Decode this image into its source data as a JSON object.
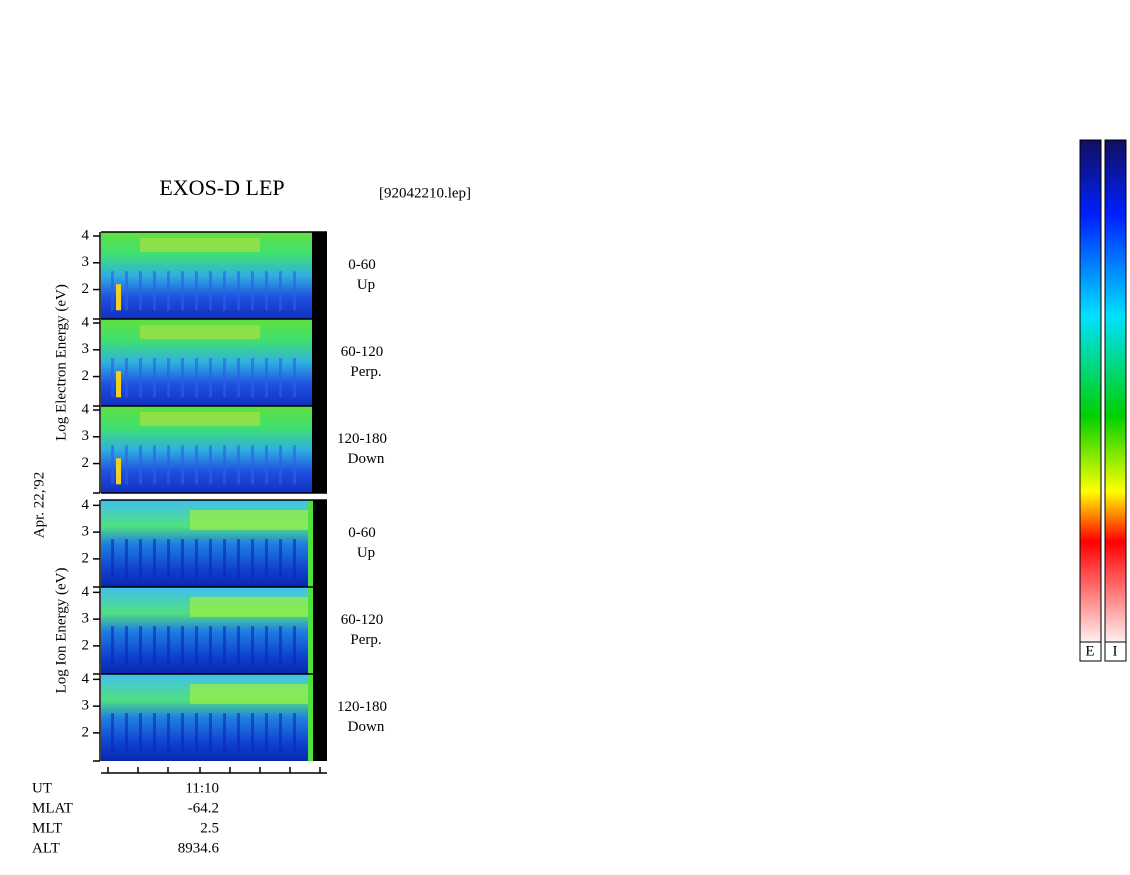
{
  "header": {
    "title": "EXOS-D LEP",
    "file": "[92042210.lep]"
  },
  "date": "Apr. 22,'92",
  "groups": [
    {
      "ylabel": "Log Electron Energy (eV)",
      "ylim": [
        0.9,
        4.15
      ],
      "yticks": [
        2,
        3,
        4
      ],
      "panels": [
        {
          "range": "0-60",
          "direction": "Up"
        },
        {
          "range": "60-120",
          "direction": "Perp."
        },
        {
          "range": "120-180",
          "direction": "Down"
        }
      ]
    },
    {
      "ylabel": "Log Ion Energy (eV)",
      "ylim": [
        0.95,
        4.2
      ],
      "yticks": [
        2,
        3,
        4
      ],
      "panels": [
        {
          "range": "0-60",
          "direction": "Up"
        },
        {
          "range": "60-120",
          "direction": "Perp."
        },
        {
          "range": "120-180",
          "direction": "Down"
        }
      ]
    }
  ],
  "footer": {
    "rows": [
      [
        "UT",
        "11:10"
      ],
      [
        "MLAT",
        "-64.2"
      ],
      [
        "MLT",
        "2.5"
      ],
      [
        "ALT",
        "8934.6"
      ]
    ]
  },
  "colorbars": [
    "E",
    "I"
  ]
}
